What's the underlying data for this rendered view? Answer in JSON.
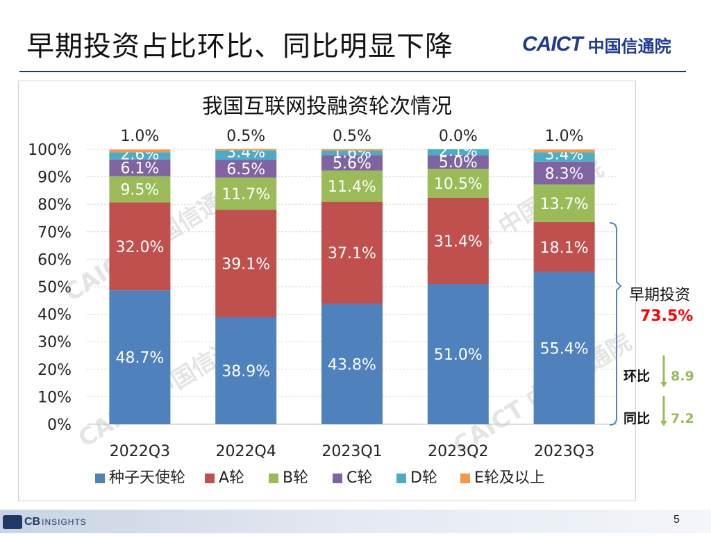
{
  "slide": {
    "title": "早期投资占比环比、同比明显下降",
    "logo_en": "CAICT",
    "logo_cn": "中国信通院",
    "page_number": "5",
    "footer_logo_main": "CB",
    "footer_logo_sub": "INSIGHTS"
  },
  "chart_data": {
    "type": "bar",
    "stacked": true,
    "title": "我国互联网投融资轮次情况",
    "categories": [
      "2022Q3",
      "2022Q4",
      "2023Q1",
      "2023Q2",
      "2023Q3"
    ],
    "y_ticks": [
      "0%",
      "10%",
      "20%",
      "30%",
      "40%",
      "50%",
      "60%",
      "70%",
      "80%",
      "90%",
      "100%"
    ],
    "ylim": [
      0,
      100
    ],
    "series": [
      {
        "name": "种子天使轮",
        "color": "#4f81bd",
        "values": [
          48.7,
          38.9,
          43.8,
          51.0,
          55.4
        ],
        "labels": [
          "48.7%",
          "38.9%",
          "43.8%",
          "51.0%",
          "55.4%"
        ]
      },
      {
        "name": "A轮",
        "color": "#c0504d",
        "values": [
          32.0,
          39.1,
          37.1,
          31.4,
          18.1
        ],
        "labels": [
          "32.0%",
          "39.1%",
          "37.1%",
          "31.4%",
          "18.1%"
        ]
      },
      {
        "name": "B轮",
        "color": "#9bbb59",
        "values": [
          9.5,
          11.7,
          11.4,
          10.5,
          13.7
        ],
        "labels": [
          "9.5%",
          "11.7%",
          "11.4%",
          "10.5%",
          "13.7%"
        ]
      },
      {
        "name": "C轮",
        "color": "#8064a2",
        "values": [
          6.1,
          6.5,
          5.6,
          5.0,
          8.3
        ],
        "labels": [
          "6.1%",
          "6.5%",
          "5.6%",
          "5.0%",
          "8.3%"
        ]
      },
      {
        "name": "D轮",
        "color": "#4bacc6",
        "values": [
          2.6,
          3.4,
          1.6,
          2.1,
          3.4
        ],
        "labels": [
          "2.6%",
          "3.4%",
          "1.6%",
          "2.1%",
          "3.4%"
        ]
      },
      {
        "name": "E轮及以上",
        "color": "#f79646",
        "values": [
          1.0,
          0.5,
          0.5,
          0.0,
          1.0
        ],
        "labels": [
          "1.0%",
          "0.5%",
          "0.5%",
          "0.0%",
          "1.0%"
        ]
      }
    ],
    "annotations": {
      "early_label": "早期投资",
      "early_value": "73.5%",
      "qoq_label": "环比",
      "qoq_value": "8.9",
      "yoy_label": "同比",
      "yoy_value": "7.2",
      "early_value_color": "#ff0000",
      "change_value_color": "#9bbb59"
    },
    "watermark": "CAICT 中国信通院",
    "grid": true,
    "legend_position": "bottom"
  }
}
